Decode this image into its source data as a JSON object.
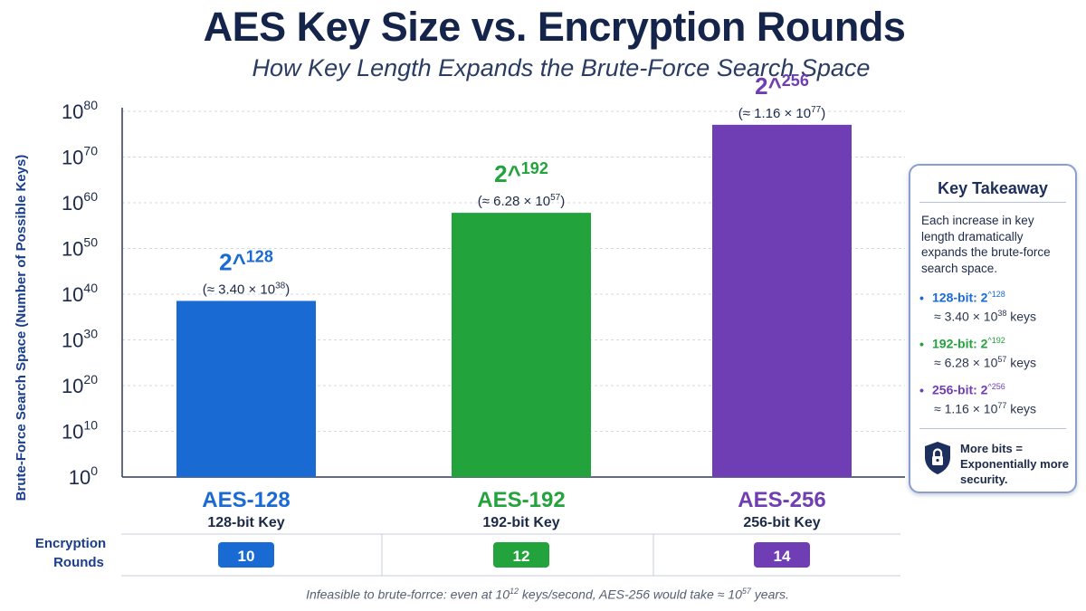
{
  "colors": {
    "aes128": "#1a6ad4",
    "aes192": "#23a33c",
    "aes256": "#6f3db4",
    "title": "#15244a",
    "grid": "#d4d8e0"
  },
  "chart_data": {
    "type": "bar",
    "title": "AES Key Size vs. Encryption Rounds",
    "subtitle": "How Key Length Expands the Brute-Force Search Space",
    "ylabel": "Brute-Force Search Space (Number of Possible Keys)",
    "yscale": "log10",
    "ylim_exponent": [
      0,
      80
    ],
    "ytick_exponents": [
      0,
      10,
      20,
      30,
      40,
      50,
      60,
      70,
      80
    ],
    "grid": true,
    "categories": [
      "AES-128",
      "AES-192",
      "AES-256"
    ],
    "sublabels": [
      "128-bit Key",
      "192-bit Key",
      "256-bit Key"
    ],
    "value_exponents": [
      128,
      192,
      256
    ],
    "value_log10": [
      38.53,
      57.8,
      77.06
    ],
    "value_label_base": "2^",
    "approx_mantissa": [
      "3.40",
      "6.28",
      "1.16"
    ],
    "approx_exponent": [
      "38",
      "57",
      "77"
    ],
    "rounds_label_line1": "Encryption",
    "rounds_label_line2": "Rounds",
    "rounds": [
      10,
      12,
      14
    ],
    "colors": [
      "#1a6ad4",
      "#23a33c",
      "#6f3db4"
    ]
  },
  "key_takeaway": {
    "title": "Key Takeaway",
    "text": "Each increase in key length dramatically expands the brute-force search space.",
    "items": [
      {
        "label": "128-bit: 2",
        "exp": "^128",
        "approx": "≈ 3.40 × 10",
        "approx_exp": "38",
        "unit": " keys"
      },
      {
        "label": "192-bit: 2",
        "exp": "^192",
        "approx": "≈ 6.28 × 10",
        "approx_exp": "57",
        "unit": " keys"
      },
      {
        "label": "256-bit: 2",
        "exp": "^256",
        "approx": "≈ 1.16 × 10",
        "approx_exp": "77",
        "unit": " keys"
      }
    ],
    "footer": "More bits = Exponentially more security."
  },
  "footnote": {
    "part1": "Infeasible to brute-forrce: even at 10",
    "exp1": "12",
    "part2": " keys/second, AES-256 would take ≈ 10",
    "exp2": "57",
    "part3": " years."
  }
}
